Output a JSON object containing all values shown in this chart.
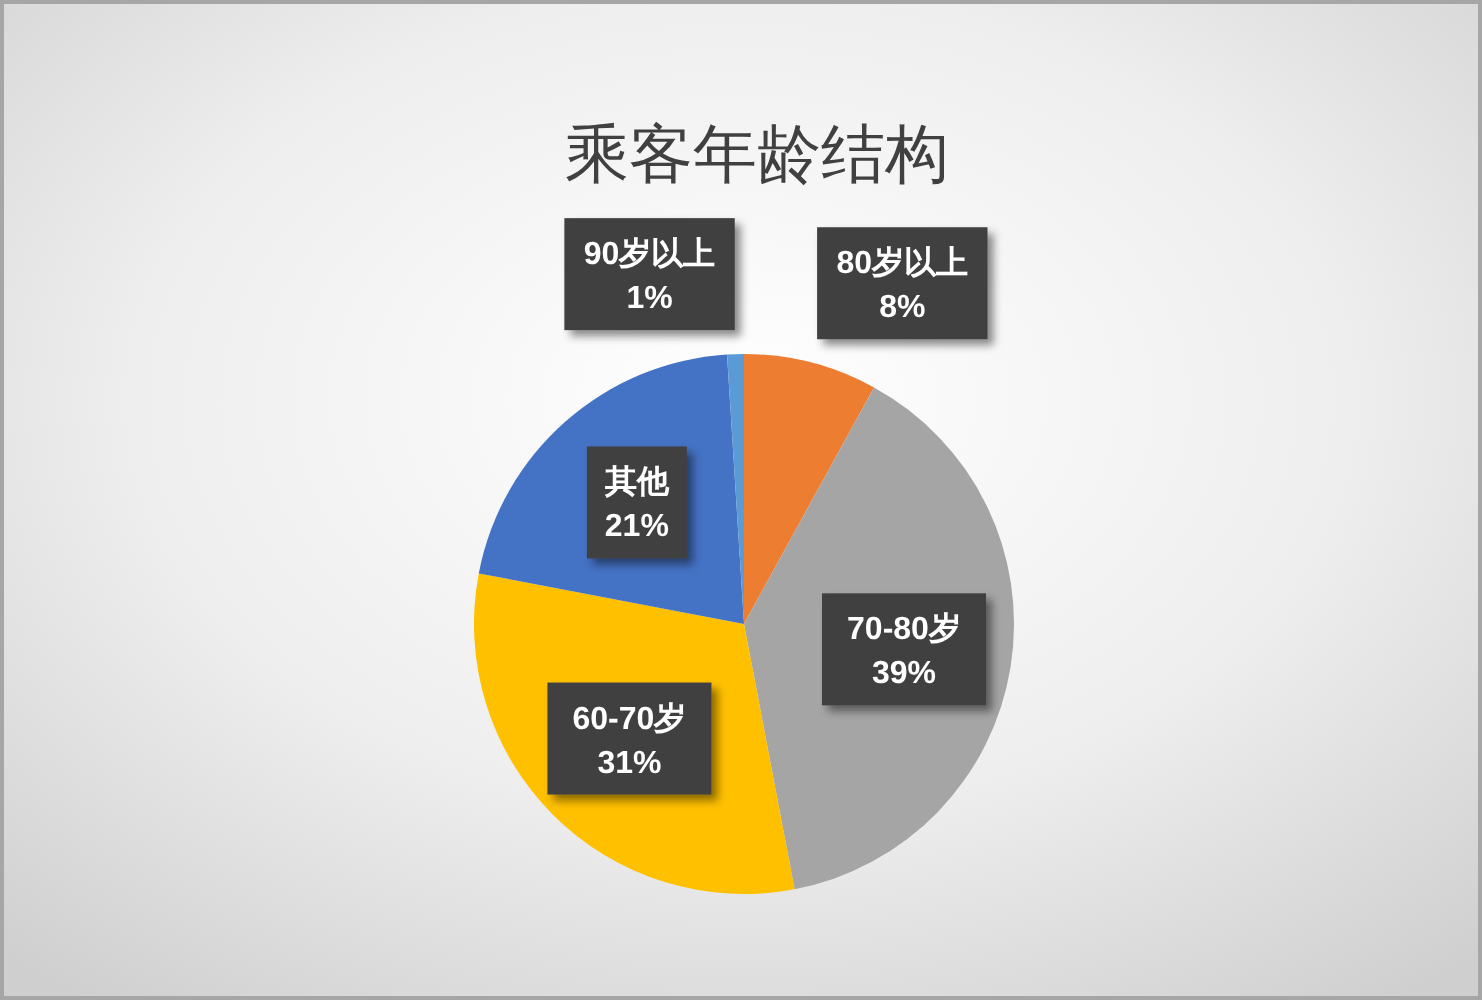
{
  "chart_data": {
    "type": "pie",
    "title": "乘客年龄结构",
    "categories": [
      "80岁以上",
      "70-80岁",
      "60-70岁",
      "其他",
      "90岁以上"
    ],
    "values": [
      8,
      39,
      31,
      21,
      1
    ],
    "colors": [
      "#ed7d31",
      "#a5a5a5",
      "#ffc000",
      "#4472c4",
      "#5b9bd5"
    ],
    "value_labels": [
      "8%",
      "39%",
      "31%",
      "21%",
      "1%"
    ]
  }
}
